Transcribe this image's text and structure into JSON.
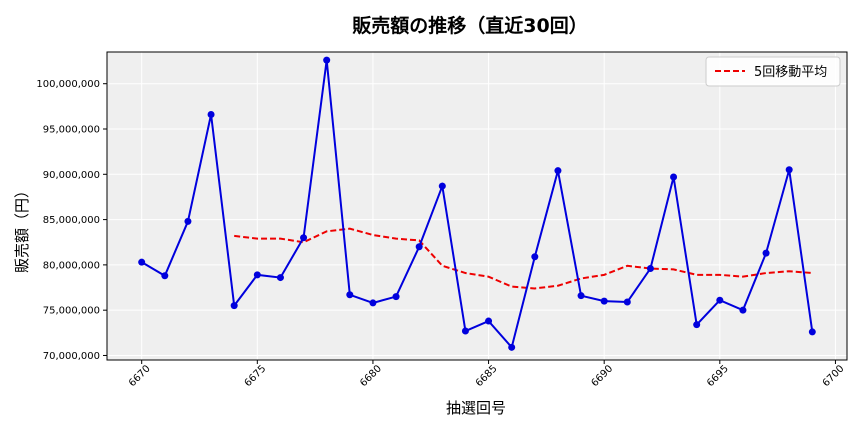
{
  "chart_data": {
    "type": "line",
    "title": "販売額の推移（直近30回）",
    "xlabel": "抽選回号",
    "ylabel": "販売額（円）",
    "xlim": [
      6668.5,
      6700.5
    ],
    "ylim": [
      69500000,
      103500000
    ],
    "xticks": [
      6670,
      6675,
      6680,
      6685,
      6690,
      6695,
      6700
    ],
    "yticks": [
      70000000,
      75000000,
      80000000,
      85000000,
      90000000,
      95000000,
      100000000
    ],
    "ytick_labels": [
      "70,000,000",
      "75,000,000",
      "80,000,000",
      "85,000,000",
      "90,000,000",
      "95,000,000",
      "100,000,000"
    ],
    "grid": true,
    "legend_position": "top-right",
    "colors": {
      "plot_bg": "#efefef",
      "grid": "#ffffff",
      "sales": "#0000dd",
      "ma": "#ee0000"
    },
    "series": [
      {
        "style": "solid-with-markers",
        "x": [
          6670,
          6671,
          6672,
          6673,
          6674,
          6675,
          6676,
          6677,
          6678,
          6679,
          6680,
          6681,
          6682,
          6683,
          6684,
          6685,
          6686,
          6687,
          6688,
          6689,
          6690,
          6691,
          6692,
          6693,
          6694,
          6695,
          6696,
          6697,
          6698,
          6699
        ],
        "values": [
          80300000,
          78800000,
          84800000,
          96600000,
          75500000,
          78900000,
          78600000,
          83000000,
          102600000,
          76700000,
          75800000,
          76500000,
          82000000,
          88700000,
          72700000,
          73800000,
          70900000,
          80900000,
          90400000,
          76600000,
          76000000,
          75900000,
          79600000,
          89700000,
          73400000,
          76100000,
          75000000,
          81300000,
          90500000,
          72600000
        ]
      },
      {
        "name": "5回移動平均",
        "style": "dashed",
        "x": [
          6674,
          6675,
          6676,
          6677,
          6678,
          6679,
          6680,
          6681,
          6682,
          6683,
          6684,
          6685,
          6686,
          6687,
          6688,
          6689,
          6690,
          6691,
          6692,
          6693,
          6694,
          6695,
          6696,
          6697,
          6698,
          6699
        ],
        "values": [
          83200000,
          82900000,
          82900000,
          82500000,
          83700000,
          84000000,
          83300000,
          82900000,
          82700000,
          79900000,
          79100000,
          78700000,
          77600000,
          77400000,
          77700000,
          78500000,
          78900000,
          79900000,
          79600000,
          79500000,
          78900000,
          78900000,
          78700000,
          79100000,
          79300000,
          79100000
        ]
      }
    ]
  }
}
